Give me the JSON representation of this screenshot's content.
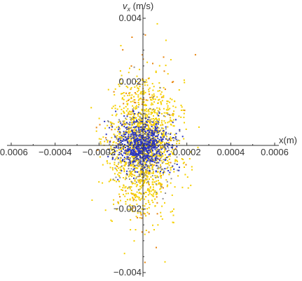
{
  "chart_data": {
    "type": "scatter",
    "xlabel": "x(m)",
    "ylabel_var": "v",
    "ylabel_sub": "x",
    "ylabel_unit": " (m/s)",
    "xlim": [
      -0.0006,
      0.0006
    ],
    "ylim": [
      -0.004,
      0.004
    ],
    "grid": false,
    "x_ticks": [
      -0.0006,
      -0.0004,
      -0.0002,
      0.0002,
      0.0004,
      0.0006
    ],
    "x_tick_labels": [
      "−0.0006",
      "−0.0004",
      "−0.0002",
      "0.0002",
      "0.0004",
      "0.0006"
    ],
    "y_ticks": [
      -0.004,
      -0.002,
      0.002,
      0.004
    ],
    "y_tick_labels": [
      "−0.004",
      "−0.002",
      "0.002",
      "0.004"
    ],
    "series": [
      {
        "color": "#E8830C",
        "count": 140,
        "x_mean": 0.0,
        "x_sd": 8.5e-05,
        "y_mean": 0.0,
        "y_sd": 0.0014
      },
      {
        "color": "#F5D000",
        "count": 1400,
        "x_mean": 0.0,
        "x_sd": 7.5e-05,
        "y_mean": 0.0,
        "y_sd": 0.001
      },
      {
        "color": "#909090",
        "count": 260,
        "x_mean": 0.0,
        "x_sd": 7e-05,
        "y_mean": 0.0,
        "y_sd": 0.00065
      },
      {
        "color": "#2B35C0",
        "count": 620,
        "x_mean": 0.0,
        "x_sd": 6e-05,
        "y_mean": 0.0,
        "y_sd": 0.00038
      }
    ]
  }
}
